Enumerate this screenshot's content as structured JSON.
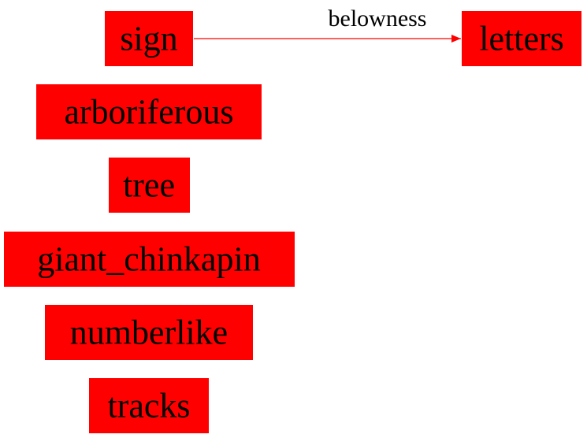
{
  "colors": {
    "node_fill": "#ff0000",
    "edge": "#ff0000",
    "text": "#000000",
    "background": "#ffffff"
  },
  "nodes": [
    {
      "id": "sign",
      "label": "sign"
    },
    {
      "id": "letters",
      "label": "letters"
    },
    {
      "id": "arboriferous",
      "label": "arboriferous"
    },
    {
      "id": "tree",
      "label": "tree"
    },
    {
      "id": "giant_chinkapin",
      "label": "giant_chinkapin"
    },
    {
      "id": "numberlike",
      "label": "numberlike"
    },
    {
      "id": "tracks",
      "label": "tracks"
    }
  ],
  "edges": [
    {
      "from": "sign",
      "to": "letters",
      "label": "belowness"
    }
  ]
}
